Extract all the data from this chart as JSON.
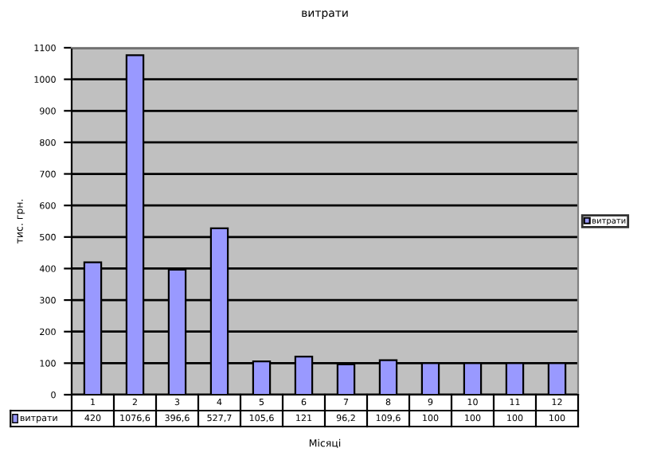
{
  "chart_data": {
    "type": "bar",
    "title": "витрати",
    "xlabel": "Місяці",
    "ylabel": "тис. грн.",
    "categories": [
      "1",
      "2",
      "3",
      "4",
      "5",
      "6",
      "7",
      "8",
      "9",
      "10",
      "11",
      "12"
    ],
    "series": [
      {
        "name": "витрати",
        "color": "#9999ff",
        "values": [
          420,
          1076.6,
          396.6,
          527.7,
          105.6,
          121,
          96.2,
          109.6,
          100,
          100,
          100,
          100
        ],
        "value_labels": [
          "420",
          "1076,6",
          "396,6",
          "527,7",
          "105,6",
          "121",
          "96,2",
          "109,6",
          "100",
          "100",
          "100",
          "100"
        ]
      }
    ],
    "ylim": [
      0,
      1100
    ],
    "yticks": [
      0,
      100,
      200,
      300,
      400,
      500,
      600,
      700,
      800,
      900,
      1000,
      1100
    ],
    "grid": "y",
    "legend": "right"
  }
}
